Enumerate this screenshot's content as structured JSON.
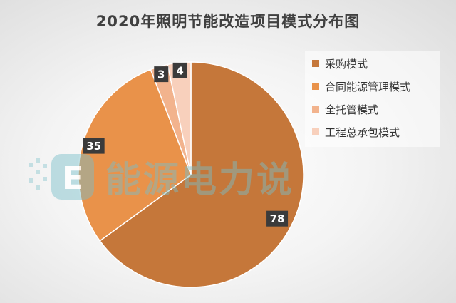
{
  "chart_data": {
    "type": "pie",
    "title": "2020年照明节能改造项目模式分布图",
    "slices": [
      {
        "label": "采购模式",
        "value": 78,
        "color": "#C5773A"
      },
      {
        "label": "合同能源管理模式",
        "value": 35,
        "color": "#E9924A"
      },
      {
        "label": "全托管模式",
        "value": 3,
        "color": "#F2B38D"
      },
      {
        "label": "工程总承包模式",
        "value": 4,
        "color": "#F8D0BC"
      }
    ],
    "legend_position": "right",
    "data_labels": true
  },
  "watermark": {
    "text": "能源电力说",
    "logo_letter": "E"
  }
}
